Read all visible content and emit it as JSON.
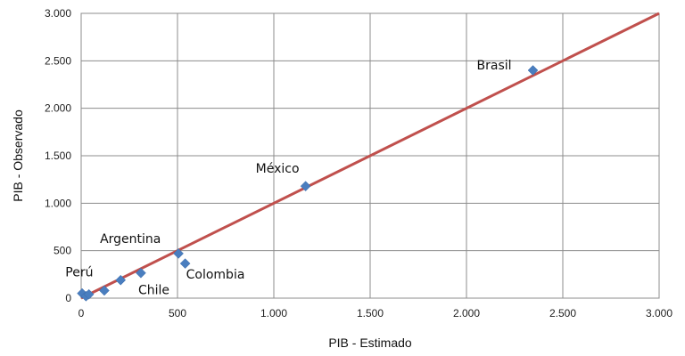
{
  "chart_data": {
    "type": "scatter",
    "title": "",
    "xlabel": "PIB - Estimado",
    "ylabel": "PIB - Observado",
    "xlim": [
      0,
      3000
    ],
    "ylim": [
      0,
      3000
    ],
    "x_ticks": [
      0,
      500,
      1000,
      1500,
      2000,
      2500,
      3000
    ],
    "x_tick_labels": [
      "0",
      "500",
      "1.000",
      "1.500",
      "2.000",
      "2.500",
      "3.000"
    ],
    "y_ticks": [
      0,
      500,
      1000,
      1500,
      2000,
      2500,
      3000
    ],
    "y_tick_labels": [
      "0",
      "500",
      "1.000",
      "1.500",
      "2.000",
      "2.500",
      "3.000"
    ],
    "grid": true,
    "legend": "none",
    "points": [
      {
        "x": 5,
        "y": 50
      },
      {
        "x": 25,
        "y": 20
      },
      {
        "x": 40,
        "y": 40
      },
      {
        "x": 120,
        "y": 80
      },
      {
        "x": 205,
        "y": 190
      },
      {
        "x": 310,
        "y": 265
      },
      {
        "x": 505,
        "y": 470
      },
      {
        "x": 540,
        "y": 365
      },
      {
        "x": 1165,
        "y": 1180
      },
      {
        "x": 2345,
        "y": 2400
      }
    ],
    "annotations": [
      {
        "text": "Brasil",
        "x": 2345,
        "y": 2400
      },
      {
        "text": "México",
        "x": 1165,
        "y": 1180
      },
      {
        "text": "Argentina",
        "x": 505,
        "y": 470
      },
      {
        "text": "Colombia",
        "x": 540,
        "y": 365
      },
      {
        "text": "Perú",
        "x": 205,
        "y": 190
      },
      {
        "text": "Chile",
        "x": 310,
        "y": 265
      }
    ],
    "reference_line": {
      "from": [
        0,
        0
      ],
      "to": [
        3000,
        3000
      ]
    },
    "colors": {
      "marker": "#4a7ebf",
      "line": "#c0504d",
      "grid": "#8c8c8c"
    }
  }
}
